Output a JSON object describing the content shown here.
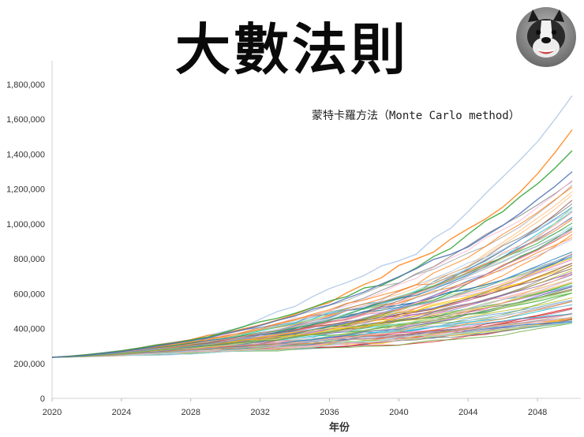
{
  "header": {
    "title": "大數法則",
    "subtitle": "蒙特卡羅方法（Monte Carlo method）"
  },
  "avatar": {
    "icon": "bulldog-photo-icon"
  },
  "chart_data": {
    "type": "line",
    "title": "",
    "xlabel": "年份",
    "ylabel": "",
    "xlim": [
      2020,
      2050.5
    ],
    "ylim": [
      0,
      1800000
    ],
    "x_ticks": [
      "2020",
      "2024",
      "2028",
      "2032",
      "2036",
      "2040",
      "2044",
      "2048"
    ],
    "y_ticks": [
      "0",
      "200,000",
      "400,000",
      "600,000",
      "800,000",
      "1,000,000",
      "1,200,000",
      "1,400,000",
      "1,600,000",
      "1,800,000"
    ],
    "grid": false,
    "legend": "none",
    "series_count": 100,
    "start_value": 235000,
    "highlight_series": [
      {
        "color": "#aec7e8",
        "end_value": 1735000
      },
      {
        "color": "#ff7f0e",
        "end_value": 1540000
      },
      {
        "color": "#2ca02c",
        "end_value": 1420000
      },
      {
        "color": "#4a6fb5",
        "end_value": 1300000
      }
    ],
    "end_value_range": [
      430000,
      1735000
    ],
    "palette": [
      "#1f77b4",
      "#ff7f0e",
      "#2ca02c",
      "#d62728",
      "#9467bd",
      "#8c564b",
      "#e377c2",
      "#7f7f7f",
      "#bcbd22",
      "#17becf",
      "#aec7e8",
      "#ffbb78",
      "#98df8a",
      "#ff9896",
      "#c5b0d5",
      "#f7b6d2",
      "#dbdb8d",
      "#9edae5",
      "#4472c4",
      "#ed7d31",
      "#a5a5a5",
      "#ffc000",
      "#5b9bd5",
      "#70ad47"
    ]
  }
}
